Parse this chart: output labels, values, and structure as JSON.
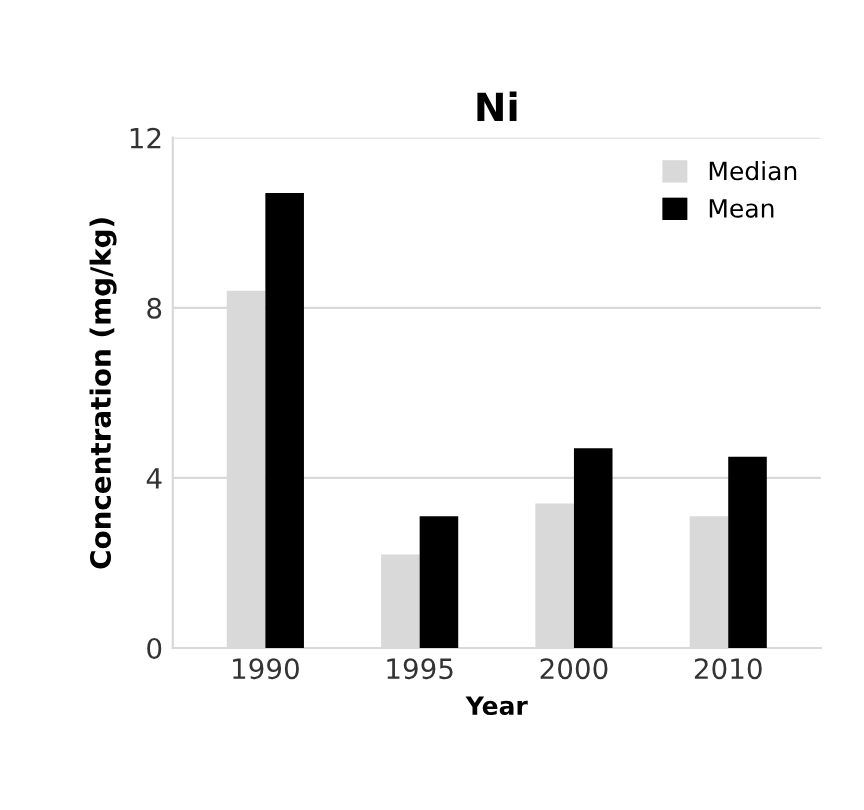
{
  "chart_data": {
    "type": "bar",
    "title": "Ni",
    "xlabel": "Year",
    "ylabel": "Concentration (mg/kg)",
    "categories": [
      "1990",
      "1995",
      "2000",
      "2010"
    ],
    "series": [
      {
        "name": "Median",
        "color": "#d9d9d9",
        "values": [
          8.4,
          2.2,
          3.4,
          3.1
        ]
      },
      {
        "name": "Mean",
        "color": "#000000",
        "values": [
          10.7,
          3.1,
          4.7,
          4.5
        ]
      }
    ],
    "ylim": [
      0,
      12
    ],
    "yticks": [
      0,
      4,
      8,
      12
    ],
    "grid": "y",
    "legend": "top right"
  }
}
